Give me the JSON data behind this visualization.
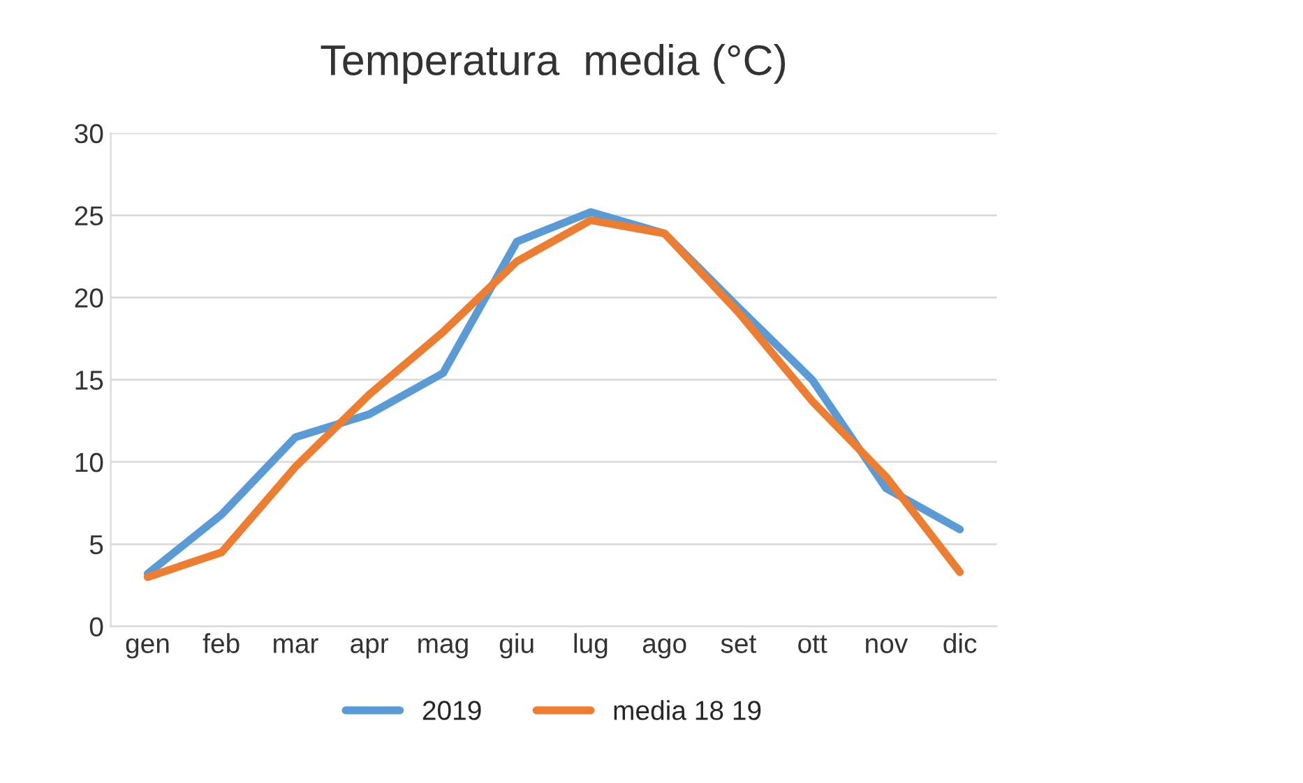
{
  "chart_data": {
    "type": "line",
    "title": "Temperatura  media (°C)",
    "categories": [
      "gen",
      "feb",
      "mar",
      "apr",
      "mag",
      "giu",
      "lug",
      "ago",
      "set",
      "ott",
      "nov",
      "dic"
    ],
    "series": [
      {
        "name": "2019",
        "color": "#5b9bd5",
        "values": [
          3.2,
          6.8,
          11.5,
          12.9,
          15.4,
          23.4,
          25.2,
          23.9,
          19.4,
          15.0,
          8.4,
          5.9
        ]
      },
      {
        "name": "media 18 19",
        "color": "#ed7d31",
        "values": [
          3.0,
          4.5,
          9.7,
          14.1,
          17.9,
          22.2,
          24.7,
          23.9,
          19.1,
          13.7,
          9.1,
          3.3
        ]
      }
    ],
    "ylim": [
      0,
      30
    ],
    "yticks": [
      0,
      5,
      10,
      15,
      20,
      25,
      30
    ],
    "grid": "y",
    "legend": "bottom",
    "marker": "none",
    "line_style": "solid"
  }
}
